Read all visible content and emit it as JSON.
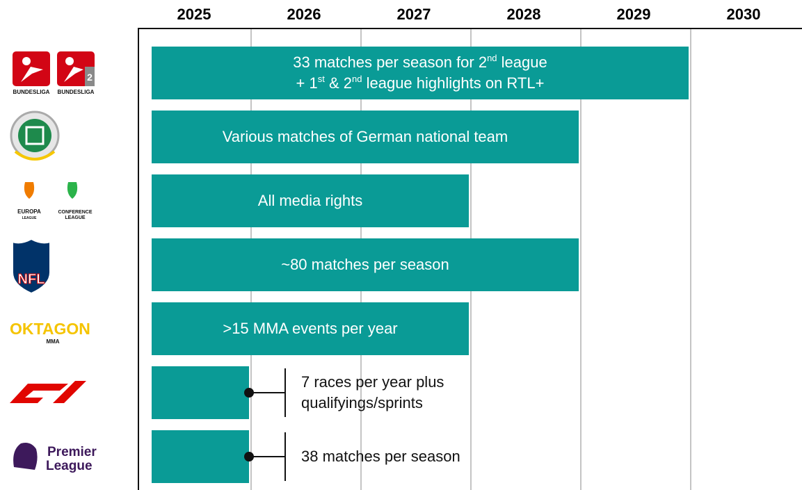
{
  "chart_data": {
    "type": "timeline",
    "xlim": [
      2025,
      2031
    ],
    "xticks": [
      2025,
      2026,
      2027,
      2028,
      2029,
      2030
    ],
    "color": "#0a9b96",
    "grid": true,
    "bars": [
      {
        "end": 2030,
        "logo": [
          "BUNDESLIGA",
          "BUNDESLIGA",
          "2"
        ],
        "label": [
          [
            "33 matches per season for 2",
            "nd",
            " league"
          ],
          [
            "+ 1",
            "st",
            " & 2",
            "nd",
            " league highlights on RTL+"
          ]
        ]
      },
      {
        "end": 2029,
        "label": [
          [
            "Various matches of German national team"
          ]
        ]
      },
      {
        "end": 2028,
        "logo": [
          "EUROPA",
          "LEAGUE",
          "CONFERENCE",
          "LEAGUE"
        ],
        "label": [
          [
            "All media rights"
          ]
        ]
      },
      {
        "end": 2029,
        "logo": [
          "NFL"
        ],
        "label": [
          [
            "~80 matches per season"
          ]
        ]
      },
      {
        "end": 2028,
        "logo": [
          "OKTAGON",
          "MMA"
        ],
        "label": [
          [
            ">15 MMA events per year"
          ]
        ]
      },
      {
        "end": 2026,
        "note": [
          [
            "7 races per year plus"
          ],
          [
            "qualifyings/sprints"
          ]
        ]
      },
      {
        "end": 2026,
        "logo": [
          "Premier",
          "League"
        ],
        "note": [
          [
            "38 matches per season"
          ]
        ]
      }
    ]
  }
}
